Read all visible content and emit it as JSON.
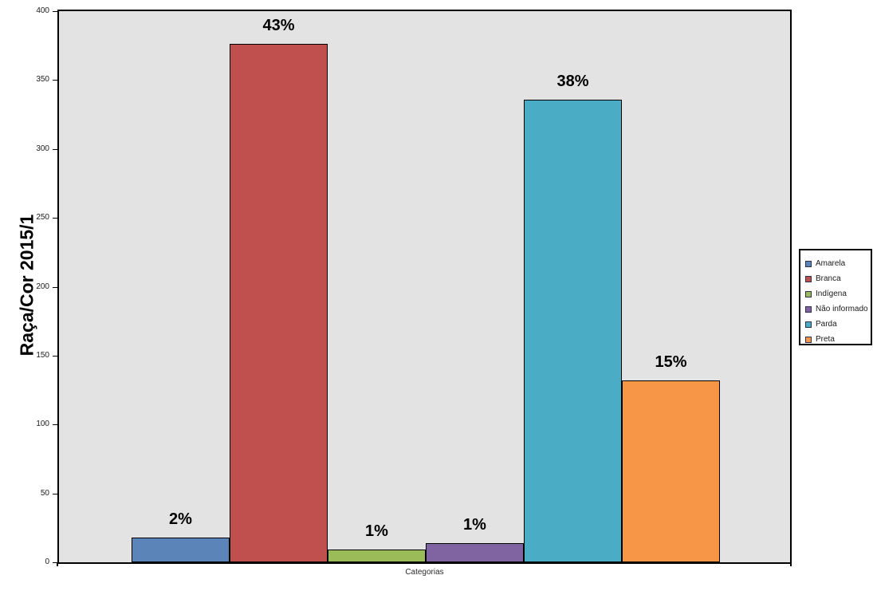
{
  "chart_data": {
    "type": "bar",
    "title": "",
    "ylabel": "Raça/Cor 2015/1",
    "xlabel": "Categorias",
    "ylim": [
      0,
      400
    ],
    "yticks": [
      0,
      50,
      100,
      150,
      200,
      250,
      300,
      350,
      400
    ],
    "grid": false,
    "legend_position": "right",
    "plot_background": "#e3e3e3",
    "bar_border_color": "#000000",
    "series": [
      {
        "name": "Amarela",
        "value": 18,
        "percent_label": "2%",
        "color": "#5B84B8"
      },
      {
        "name": "Branca",
        "value": 376,
        "percent_label": "43%",
        "color": "#C0504D"
      },
      {
        "name": "Indígena",
        "value": 9,
        "percent_label": "1%",
        "color": "#9BBB59"
      },
      {
        "name": "Não informado",
        "value": 14,
        "percent_label": "1%",
        "color": "#8064A2"
      },
      {
        "name": "Parda",
        "value": 336,
        "percent_label": "38%",
        "color": "#4BACC6"
      },
      {
        "name": "Preta",
        "value": 132,
        "percent_label": "15%",
        "color": "#F79646"
      }
    ]
  }
}
